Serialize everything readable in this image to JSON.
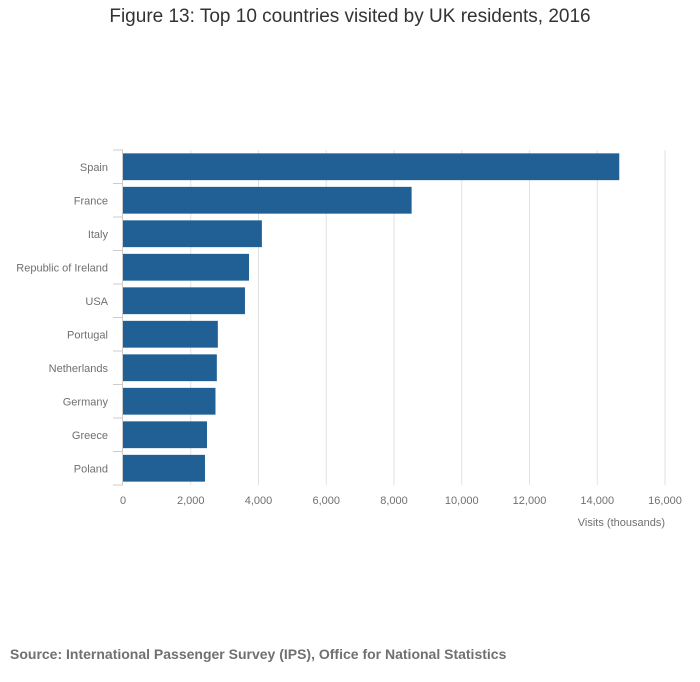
{
  "chart_data": {
    "type": "bar",
    "orientation": "horizontal",
    "title": "Figure 13: Top 10 countries visited by UK residents, 2016",
    "xlabel": "Visits (thousands)",
    "ylabel": "",
    "categories": [
      "Spain",
      "France",
      "Italy",
      "Republic of Ireland",
      "USA",
      "Portugal",
      "Netherlands",
      "Germany",
      "Greece",
      "Poland"
    ],
    "values": [
      14650,
      8520,
      4100,
      3720,
      3600,
      2800,
      2770,
      2730,
      2480,
      2420
    ],
    "xlim": [
      0,
      16000
    ],
    "xticks": [
      0,
      2000,
      4000,
      6000,
      8000,
      10000,
      12000,
      14000,
      16000
    ],
    "xtick_labels": [
      "0",
      "2,000",
      "4,000",
      "6,000",
      "8,000",
      "10,000",
      "12,000",
      "14,000",
      "16,000"
    ],
    "grid": true,
    "legend": "none",
    "bar_color": "#206095",
    "source": "Source: International Passenger Survey (IPS), Office for National Statistics"
  }
}
